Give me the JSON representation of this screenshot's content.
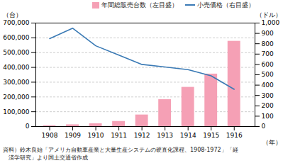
{
  "chart_data": {
    "type": "bar",
    "x": [
      1908,
      1909,
      1910,
      1911,
      1912,
      1913,
      1914,
      1915,
      1916
    ],
    "xlim": [
      1907.4,
      1916.9
    ],
    "xticks": [
      1908,
      1909,
      1910,
      1911,
      1912,
      1913,
      1914,
      1915,
      1916
    ],
    "xlabel": "（年）",
    "ylabel": "（台）",
    "y2label": "（ドル）",
    "ylim": [
      0,
      700000
    ],
    "yticks": [
      0,
      {
        "value": 100000,
        "label": "100,000"
      },
      {
        "value": 200000,
        "label": "200,000"
      },
      {
        "value": 300000,
        "label": "300,000"
      },
      {
        "value": 400000,
        "label": "400,000"
      },
      {
        "value": 500000,
        "label": "500,000"
      },
      {
        "value": 600000,
        "label": "600,000"
      },
      {
        "value": 700000,
        "label": "700,000"
      }
    ],
    "y2lim": [
      0,
      1000
    ],
    "y2ticks": [
      0,
      100,
      200,
      300,
      400,
      500,
      600,
      700,
      800,
      900,
      {
        "value": 1000,
        "label": "1,000"
      }
    ],
    "grid": true,
    "legend": "upper right",
    "series": [
      {
        "name": "年間総販売台数（左目盛）",
        "type": "bar",
        "color": "#f5a0b5",
        "values": [
          5986,
          12292,
          19293,
          34858,
          78611,
          182809,
          265649,
          355276,
          577036
        ]
      },
      {
        "name": "小売価格（右目盛）",
        "type": "line",
        "color": "#3a7ab5",
        "axis": "y2",
        "values": [
          850,
          950,
          780,
          690,
          600,
          575,
          550,
          490,
          360
        ]
      }
    ],
    "annotations": [
      "資料）鈴木良始「アメリカ自動車産業と大量生産システムの硬直化課程、1908-1972」「経",
      "　済学研究」より国土交通省作成"
    ]
  }
}
